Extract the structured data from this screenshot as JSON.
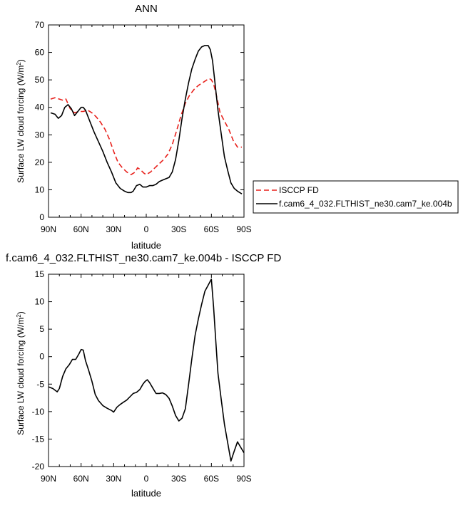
{
  "chart_data": [
    {
      "type": "line",
      "title": "ANN",
      "xlabel": "latitude",
      "ylabel": "Surface LW cloud forcing (W/m²)",
      "ylabel_main": "Surface LW cloud forcing (W/m",
      "ylabel_sup": "2",
      "ylabel_end": ")",
      "xlim": [
        -90,
        90
      ],
      "ylim": [
        0,
        70
      ],
      "xticks": [
        -90,
        -60,
        -30,
        0,
        30,
        60,
        90
      ],
      "xtick_labels": [
        "90N",
        "60N",
        "30N",
        "0",
        "30S",
        "60S",
        "90S"
      ],
      "yticks": [
        0,
        10,
        20,
        30,
        40,
        50,
        60,
        70
      ],
      "ytick_labels": [
        "0",
        "10",
        "20",
        "30",
        "40",
        "50",
        "60",
        "70"
      ],
      "legend_position": "right",
      "series": [
        {
          "name": "ISCCP FD",
          "color": "#e8211c",
          "dash": "dashed",
          "x": [
            -88,
            -84,
            -80,
            -76,
            -74,
            -70,
            -66,
            -62,
            -58,
            -54,
            -50,
            -46,
            -42,
            -38,
            -34,
            -30,
            -26,
            -22,
            -18,
            -14,
            -10,
            -8,
            -6,
            -2,
            0,
            4,
            8,
            12,
            16,
            20,
            24,
            28,
            32,
            36,
            40,
            44,
            48,
            52,
            56,
            58,
            60,
            62,
            64,
            68,
            72,
            76,
            80,
            84,
            88
          ],
          "values": [
            43,
            43.5,
            43,
            42.5,
            43,
            39.5,
            38,
            38.5,
            38.5,
            39,
            38,
            36.5,
            34.5,
            32,
            28.5,
            24,
            20,
            18,
            16.5,
            15.5,
            16.5,
            18,
            17.5,
            16,
            15.5,
            16.5,
            18,
            19.5,
            21,
            23,
            26.5,
            31.5,
            37,
            41.5,
            44.5,
            46.5,
            48,
            49,
            50,
            50.5,
            50,
            48.5,
            45.5,
            38,
            35,
            32,
            28,
            25.5,
            25.5
          ]
        },
        {
          "name": "f.cam6_4_032.FLTHIST_ne30.cam7_ke.004b",
          "color": "#000000",
          "dash": "solid",
          "x": [
            -88,
            -84,
            -81,
            -78,
            -75,
            -72,
            -69,
            -66,
            -63,
            -60,
            -58,
            -56,
            -52,
            -48,
            -44,
            -40,
            -36,
            -32,
            -28,
            -24,
            -20,
            -17,
            -14,
            -12,
            -9,
            -6,
            -3,
            0,
            3,
            6,
            9,
            12,
            15,
            18,
            21,
            24,
            27,
            30,
            33,
            36,
            39,
            42,
            45,
            48,
            51,
            54,
            57,
            59,
            61,
            63,
            66,
            69,
            72,
            75,
            78,
            81,
            84,
            88
          ],
          "values": [
            38,
            37.5,
            36,
            37,
            40,
            41,
            39.5,
            37,
            38.5,
            40,
            40,
            39,
            35,
            31,
            27.5,
            24,
            20,
            16.5,
            12.5,
            10.5,
            9.5,
            9,
            9,
            9.5,
            11.5,
            12,
            11,
            11,
            11.5,
            11.5,
            12,
            13,
            13.5,
            14,
            14.5,
            16.5,
            21,
            28,
            36,
            43,
            49,
            54,
            57.5,
            60.5,
            62,
            62.5,
            62.5,
            61,
            57,
            50,
            39,
            30.5,
            22,
            17,
            12.5,
            10.5,
            9.5,
            8.5
          ]
        }
      ]
    },
    {
      "type": "line",
      "title": "f.cam6_4_032.FLTHIST_ne30.cam7_ke.004b - ISCCP FD",
      "xlabel": "latitude",
      "ylabel": "Surface LW cloud forcing (W/m²)",
      "ylabel_main": "Surface LW cloud forcing (W/m",
      "ylabel_sup": "2",
      "ylabel_end": ")",
      "xlim": [
        -90,
        90
      ],
      "ylim": [
        -20,
        15
      ],
      "xticks": [
        -90,
        -60,
        -30,
        0,
        30,
        60,
        90
      ],
      "xtick_labels": [
        "90N",
        "60N",
        "30N",
        "0",
        "30S",
        "60S",
        "90S"
      ],
      "yticks": [
        -20,
        -15,
        -10,
        -5,
        0,
        5,
        10,
        15
      ],
      "ytick_labels": [
        "-20",
        "-15",
        "-10",
        "-5",
        "0",
        "5",
        "10",
        "15"
      ],
      "series": [
        {
          "color": "#000000",
          "dash": "solid",
          "x": [
            -90,
            -86,
            -82,
            -80,
            -77,
            -74,
            -71,
            -68,
            -65,
            -62,
            -60,
            -58,
            -56,
            -53,
            -50,
            -47,
            -44,
            -40,
            -36,
            -32,
            -30,
            -27,
            -24,
            -21,
            -18,
            -15,
            -12,
            -9,
            -6,
            -3,
            -1,
            1,
            3,
            6,
            9,
            12,
            15,
            18,
            21,
            24,
            27,
            30,
            33,
            36,
            39,
            42,
            45,
            48,
            51,
            54,
            57,
            60,
            62,
            64,
            66,
            69,
            72,
            75,
            78,
            81,
            84,
            87,
            90
          ],
          "values": [
            -5.5,
            -5.8,
            -6.4,
            -5.8,
            -3.6,
            -2.2,
            -1.5,
            -0.5,
            -0.5,
            0.5,
            1.3,
            1.2,
            -0.7,
            -2.5,
            -4.5,
            -6.9,
            -8.0,
            -8.9,
            -9.4,
            -9.8,
            -10.1,
            -9.2,
            -8.7,
            -8.3,
            -7.9,
            -7.3,
            -6.7,
            -6.5,
            -6.0,
            -5.0,
            -4.5,
            -4.2,
            -4.7,
            -5.7,
            -6.7,
            -6.7,
            -6.6,
            -6.9,
            -7.6,
            -9.0,
            -10.7,
            -11.7,
            -11.2,
            -9.5,
            -5.0,
            -0.4,
            3.9,
            6.9,
            9.5,
            11.9,
            13.0,
            14.1,
            9.0,
            3.0,
            -3.0,
            -7.7,
            -12.3,
            -15.7,
            -19.0,
            -17.2,
            -15.5,
            -16.5,
            -17.5
          ]
        }
      ]
    }
  ]
}
